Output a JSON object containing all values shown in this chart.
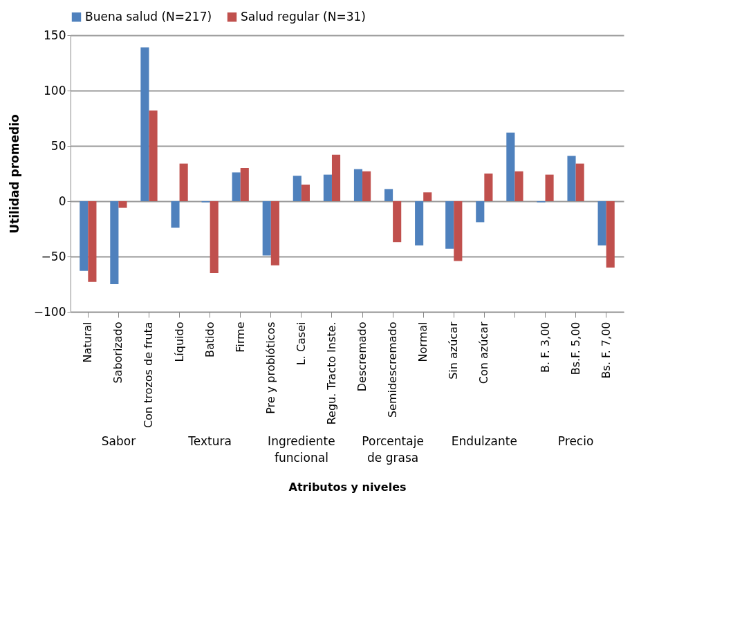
{
  "chart_data": {
    "type": "bar",
    "xlabel": "Atributos y niveles",
    "ylabel": "Utilidad promedio",
    "categories": [
      "Natural",
      "Saborizado",
      "Con trozos de fruta",
      "Líquido",
      "Batido",
      "Firme",
      "Pre y probióticos",
      "L. Casei",
      "Regu. Tracto Inste.",
      "Descremado",
      "Semidescremado",
      "Normal",
      "Sin azúcar",
      "Con azúcar",
      null,
      "B. F. 3,00",
      "Bs.F. 5,00",
      "Bs. F. 7,00"
    ],
    "series": [
      {
        "name": "Buena salud (N=217)",
        "color": "#4f81bd",
        "values": [
          -63,
          -75,
          139,
          -24,
          -1,
          26,
          -49,
          23,
          24,
          29,
          11,
          -40,
          -43,
          -19,
          62,
          -1,
          41,
          -40
        ]
      },
      {
        "name": "Salud regular (N=31)",
        "color": "#c0504d",
        "values": [
          -73,
          -6,
          82,
          34,
          -65,
          30,
          -58,
          15,
          42,
          27,
          -37,
          8,
          -54,
          25,
          27,
          24,
          34,
          -60
        ]
      }
    ],
    "annotations": [
      "Sabor",
      "Textura",
      "Ingrediente funcional",
      "Porcentaje de grasa",
      "Endulzante",
      "Precio"
    ],
    "ylim": [
      -100,
      150
    ],
    "yticks": [
      -100,
      -50,
      0,
      50,
      100,
      150
    ],
    "grid": "y",
    "legend": "top"
  }
}
